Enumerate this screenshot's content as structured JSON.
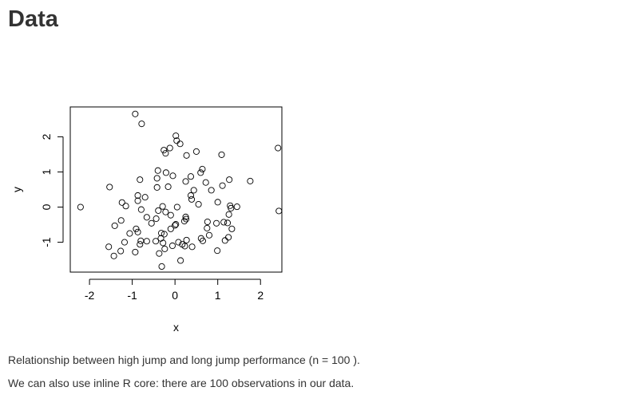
{
  "page": {
    "title": "Data",
    "caption_text": "Relationship between high jump and long jump performance (n = 100 ).",
    "inline_text": "We can also use inline R core: there are 100 observations in our data."
  },
  "chart_data": {
    "type": "scatter",
    "title": "",
    "xlabel": "x",
    "ylabel": "y",
    "xlim": [
      -2.45,
      2.5
    ],
    "ylim": [
      -1.85,
      2.85
    ],
    "x_ticks": [
      -2,
      -1,
      0,
      1,
      2
    ],
    "y_ticks": [
      -1,
      0,
      1,
      2
    ],
    "x_tick_labels": [
      "-2",
      "-1",
      "0",
      "1",
      "2"
    ],
    "y_tick_labels": [
      "-1",
      "0",
      "1",
      "2"
    ],
    "grid": false,
    "legend": "none",
    "point_color": "#000000",
    "points": [
      {
        "x": -0.93,
        "y": 2.65
      },
      {
        "x": -0.78,
        "y": 2.37
      },
      {
        "x": 0.02,
        "y": 2.03
      },
      {
        "x": 0.04,
        "y": 1.89
      },
      {
        "x": 0.12,
        "y": 1.8
      },
      {
        "x": -0.12,
        "y": 1.68
      },
      {
        "x": -0.26,
        "y": 1.62
      },
      {
        "x": -0.22,
        "y": 1.53
      },
      {
        "x": 0.5,
        "y": 1.58
      },
      {
        "x": 0.27,
        "y": 1.47
      },
      {
        "x": 1.09,
        "y": 1.49
      },
      {
        "x": 2.41,
        "y": 1.68
      },
      {
        "x": 0.64,
        "y": 1.08
      },
      {
        "x": 0.6,
        "y": 0.98
      },
      {
        "x": -0.4,
        "y": 1.04
      },
      {
        "x": -0.21,
        "y": 0.98
      },
      {
        "x": 0.37,
        "y": 0.87
      },
      {
        "x": -0.05,
        "y": 0.89
      },
      {
        "x": -0.42,
        "y": 0.82
      },
      {
        "x": -0.82,
        "y": 0.78
      },
      {
        "x": 0.25,
        "y": 0.73
      },
      {
        "x": 0.72,
        "y": 0.7
      },
      {
        "x": 1.27,
        "y": 0.78
      },
      {
        "x": 1.76,
        "y": 0.74
      },
      {
        "x": -1.53,
        "y": 0.57
      },
      {
        "x": -0.42,
        "y": 0.56
      },
      {
        "x": -0.16,
        "y": 0.58
      },
      {
        "x": 1.11,
        "y": 0.61
      },
      {
        "x": 0.85,
        "y": 0.48
      },
      {
        "x": 0.44,
        "y": 0.48
      },
      {
        "x": -0.87,
        "y": 0.33
      },
      {
        "x": -0.7,
        "y": 0.28
      },
      {
        "x": 0.37,
        "y": 0.33
      },
      {
        "x": 0.39,
        "y": 0.22
      },
      {
        "x": -0.87,
        "y": 0.18
      },
      {
        "x": -1.24,
        "y": 0.13
      },
      {
        "x": -1.15,
        "y": 0.03
      },
      {
        "x": 1.0,
        "y": 0.14
      },
      {
        "x": 0.55,
        "y": 0.08
      },
      {
        "x": -2.21,
        "y": 0.0
      },
      {
        "x": 1.29,
        "y": 0.04
      },
      {
        "x": 1.45,
        "y": 0.01
      },
      {
        "x": 1.31,
        "y": -0.03
      },
      {
        "x": 0.05,
        "y": 0.0
      },
      {
        "x": -0.29,
        "y": 0.02
      },
      {
        "x": -0.79,
        "y": -0.07
      },
      {
        "x": -0.39,
        "y": -0.1
      },
      {
        "x": -0.22,
        "y": -0.14
      },
      {
        "x": -0.1,
        "y": -0.23
      },
      {
        "x": 2.43,
        "y": -0.11
      },
      {
        "x": 1.26,
        "y": -0.21
      },
      {
        "x": -0.66,
        "y": -0.29
      },
      {
        "x": -0.44,
        "y": -0.33
      },
      {
        "x": 0.25,
        "y": -0.28
      },
      {
        "x": 0.26,
        "y": -0.34
      },
      {
        "x": 0.22,
        "y": -0.4
      },
      {
        "x": -1.26,
        "y": -0.38
      },
      {
        "x": -0.55,
        "y": -0.46
      },
      {
        "x": 0.02,
        "y": -0.49
      },
      {
        "x": 0.0,
        "y": -0.52
      },
      {
        "x": 0.76,
        "y": -0.42
      },
      {
        "x": 0.97,
        "y": -0.46
      },
      {
        "x": 1.14,
        "y": -0.43
      },
      {
        "x": 1.23,
        "y": -0.45
      },
      {
        "x": -1.41,
        "y": -0.53
      },
      {
        "x": 0.75,
        "y": -0.6
      },
      {
        "x": 1.33,
        "y": -0.62
      },
      {
        "x": -0.91,
        "y": -0.62
      },
      {
        "x": -0.1,
        "y": -0.62
      },
      {
        "x": -0.87,
        "y": -0.71
      },
      {
        "x": -1.06,
        "y": -0.75
      },
      {
        "x": -0.32,
        "y": -0.74
      },
      {
        "x": -0.25,
        "y": -0.77
      },
      {
        "x": 0.8,
        "y": -0.8
      },
      {
        "x": -0.33,
        "y": -0.89
      },
      {
        "x": -0.8,
        "y": -0.96
      },
      {
        "x": -0.66,
        "y": -0.97
      },
      {
        "x": -0.45,
        "y": -0.97
      },
      {
        "x": 0.61,
        "y": -0.89
      },
      {
        "x": 0.65,
        "y": -0.96
      },
      {
        "x": 1.25,
        "y": -0.86
      },
      {
        "x": 1.17,
        "y": -0.95
      },
      {
        "x": 0.27,
        "y": -0.94
      },
      {
        "x": 0.08,
        "y": -1.0
      },
      {
        "x": -1.18,
        "y": -1.0
      },
      {
        "x": -0.82,
        "y": -1.06
      },
      {
        "x": -0.28,
        "y": -1.02
      },
      {
        "x": 0.17,
        "y": -1.06
      },
      {
        "x": -0.06,
        "y": -1.1
      },
      {
        "x": 0.23,
        "y": -1.11
      },
      {
        "x": 0.4,
        "y": -1.13
      },
      {
        "x": -0.24,
        "y": -1.19
      },
      {
        "x": -1.55,
        "y": -1.13
      },
      {
        "x": -1.27,
        "y": -1.25
      },
      {
        "x": 0.99,
        "y": -1.24
      },
      {
        "x": -0.93,
        "y": -1.28
      },
      {
        "x": -0.37,
        "y": -1.32
      },
      {
        "x": -1.43,
        "y": -1.39
      },
      {
        "x": 0.13,
        "y": -1.52
      },
      {
        "x": -0.31,
        "y": -1.69
      }
    ]
  }
}
